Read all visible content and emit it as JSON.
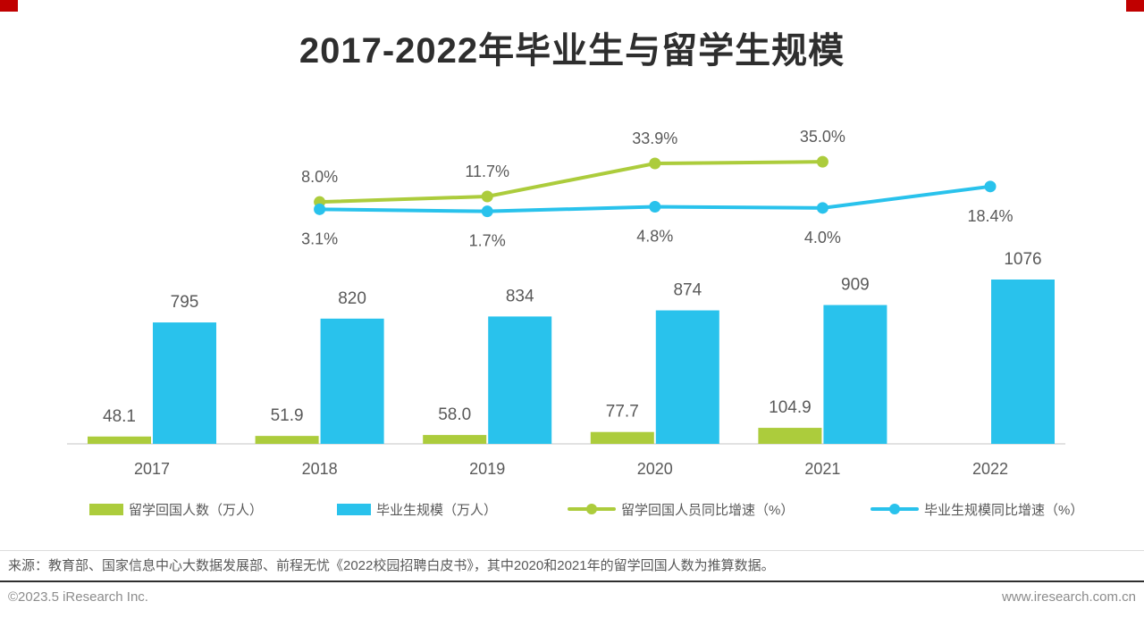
{
  "page": {
    "title": "2017-2022年毕业生与留学生规模",
    "source_note": "来源：教育部、国家信息中心大数据发展部、前程无忧《2022校园招聘白皮书》，其中2020和2021年的留学回国人数为推算数据。",
    "footer_left": "©2023.5 iResearch Inc.",
    "footer_right": "www.iresearch.com.cn",
    "corner_accent_color": "#c00000"
  },
  "chart_data": {
    "type": "bar+line combo",
    "title": "2017-2022年毕业生与留学生规模",
    "categories": [
      "2017",
      "2018",
      "2019",
      "2020",
      "2021",
      "2022"
    ],
    "axis_color": "#d9d9d9",
    "label_color": "#595959",
    "grid": "off",
    "bar_axis_range": [
      0,
      1200
    ],
    "line_axis_range_pct": [
      0,
      40
    ],
    "bar_series": [
      {
        "id": "returnees",
        "name": "留学回国人数（万人）",
        "color": "#accc3c",
        "values": [
          48.1,
          51.9,
          58.0,
          77.7,
          104.9,
          null
        ],
        "labels": [
          "48.1",
          "51.9",
          "58.0",
          "77.7",
          "104.9",
          null
        ]
      },
      {
        "id": "graduates",
        "name": "毕业生规模（万人）",
        "color": "#29c2ec",
        "values": [
          795,
          820,
          834,
          874,
          909,
          1076
        ],
        "labels": [
          "795",
          "820",
          "834",
          "874",
          "909",
          "1076"
        ]
      }
    ],
    "line_series": [
      {
        "id": "returnees-growth",
        "name": "留学回国人员同比增速（%）",
        "color": "#accc3c",
        "label_pos": "above",
        "values": [
          null,
          8.0,
          11.7,
          33.9,
          35.0,
          null
        ],
        "labels": [
          null,
          "8.0%",
          "11.7%",
          "33.9%",
          "35.0%",
          null
        ]
      },
      {
        "id": "graduates-growth",
        "name": "毕业生规模同比增速（%）",
        "color": "#29c2ec",
        "label_pos": "below",
        "values": [
          null,
          3.1,
          1.7,
          4.8,
          4.0,
          18.4
        ],
        "labels": [
          null,
          "3.1%",
          "1.7%",
          "4.8%",
          "4.0%",
          "18.4%"
        ]
      }
    ],
    "legend": [
      {
        "label": "留学回国人数（万人）",
        "type": "rect",
        "color": "#accc3c"
      },
      {
        "label": "毕业生规模（万人）",
        "type": "rect",
        "color": "#29c2ec"
      },
      {
        "label": "留学回国人员同比增速（%）",
        "type": "line",
        "color": "#accc3c"
      },
      {
        "label": "毕业生规模同比增速（%）",
        "type": "line",
        "color": "#29c2ec"
      }
    ]
  }
}
